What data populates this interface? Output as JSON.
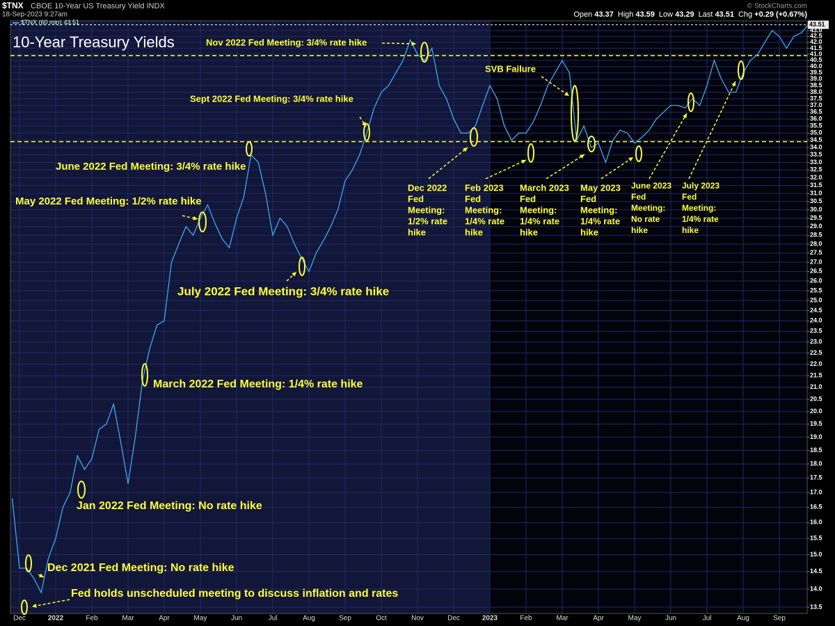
{
  "chart_data": {
    "type": "line",
    "symbol": "$TNX",
    "subtitle": "CBOE 10-Year US Treasury Yield INDX",
    "date": "18-Sep-2023 9:27am",
    "source": "© StockCharts.com",
    "title": "10-Year Treasury Yields",
    "quote": [
      {
        "name": "Open",
        "value": 43.37
      },
      {
        "name": "High",
        "value": 43.59
      },
      {
        "name": "Low",
        "value": 43.29
      },
      {
        "name": "Last",
        "value": 43.51
      },
      {
        "name": "Chg",
        "value": "+0.29 (+0.67%)"
      }
    ],
    "log_scale": true,
    "grid": true,
    "ylim": [
      13.33,
      43.85
    ],
    "yticks": [
      13.5,
      {
        "value": 14,
        "label": "14.0"
      },
      14.5,
      {
        "value": 15,
        "label": "15.0"
      },
      15.5,
      {
        "value": 16,
        "label": "16.0"
      },
      16.5,
      {
        "value": 17,
        "label": "17.0"
      },
      17.5,
      {
        "value": 18,
        "label": "18.0"
      },
      18.5,
      {
        "value": 19,
        "label": "19.0"
      },
      19.5,
      {
        "value": 20,
        "label": "20.0"
      },
      20.5,
      {
        "value": 21,
        "label": "21.0"
      },
      21.5,
      {
        "value": 22,
        "label": "22.0"
      },
      22.5,
      {
        "value": 23,
        "label": "23.0"
      },
      23.5,
      {
        "value": 24,
        "label": "24.0"
      },
      24.5,
      {
        "value": 25,
        "label": "25.0"
      },
      25.5,
      {
        "value": 26,
        "label": "26.0"
      },
      26.5,
      {
        "value": 27,
        "label": "27.0"
      },
      27.5,
      {
        "value": 28,
        "label": "28.0"
      },
      28.5,
      {
        "value": 29,
        "label": "29.0"
      },
      29.5,
      {
        "value": 30,
        "label": "30.0"
      },
      30.5,
      {
        "value": 31,
        "label": "31.0"
      },
      31.5,
      {
        "value": 32,
        "label": "32.0"
      },
      32.5,
      {
        "value": 33,
        "label": "33.0"
      },
      33.5,
      {
        "value": 34,
        "label": "34.0"
      },
      34.5,
      {
        "value": 35,
        "label": "35.0"
      },
      35.5,
      {
        "value": 36,
        "label": "36.0"
      },
      36.5,
      {
        "value": 37,
        "label": "37.0"
      },
      37.5,
      {
        "value": 38,
        "label": "38.0"
      },
      38.5,
      {
        "value": 39,
        "label": "39.0"
      },
      39.5,
      {
        "value": 40,
        "label": "40.0"
      },
      40.5,
      {
        "value": 41,
        "label": "41.0"
      },
      41.5,
      {
        "value": 42,
        "label": "42.0"
      },
      42.5,
      {
        "value": 43,
        "label": "43.0"
      }
    ],
    "categories": [
      null,
      "Dec",
      null,
      null,
      null,
      null,
      "2022",
      null,
      null,
      null,
      null,
      "Feb",
      null,
      null,
      null,
      null,
      "Mar",
      null,
      null,
      null,
      null,
      "Apr",
      null,
      null,
      null,
      null,
      "May",
      null,
      null,
      null,
      null,
      "Jun",
      null,
      null,
      null,
      null,
      "Jul",
      null,
      null,
      null,
      null,
      "Aug",
      null,
      null,
      null,
      null,
      "Sep",
      null,
      null,
      null,
      null,
      "Oct",
      null,
      null,
      null,
      null,
      "Nov",
      null,
      null,
      null,
      null,
      "Dec",
      null,
      null,
      null,
      null,
      "2023",
      null,
      null,
      null,
      null,
      "Feb",
      null,
      null,
      null,
      null,
      "Mar",
      null,
      null,
      null,
      null,
      "Apr",
      null,
      null,
      null,
      null,
      "May",
      null,
      null,
      null,
      null,
      "Jun",
      null,
      null,
      null,
      null,
      "Jul",
      null,
      null,
      null,
      null,
      "Aug",
      null,
      null,
      null,
      null,
      "Sep",
      null,
      null,
      null,
      null
    ],
    "series": [
      {
        "name": "$TNX (60 min)",
        "color": "#3fa9f5",
        "last_label": "43.51",
        "values": [
          16.8,
          14.6,
          14.6,
          14.3,
          13.9,
          14.9,
          15.5,
          16.5,
          17.0,
          18.3,
          17.8,
          18.2,
          19.3,
          19.5,
          20.3,
          18.8,
          17.3,
          19.0,
          21.3,
          22.7,
          23.8,
          24.0,
          27.0,
          28.0,
          29.0,
          28.5,
          29.5,
          30.3,
          29.2,
          28.3,
          27.8,
          29.5,
          30.8,
          33.5,
          33.0,
          31.0,
          28.5,
          29.5,
          29.0,
          28.0,
          27.2,
          26.5,
          27.5,
          28.2,
          29.0,
          30.0,
          31.8,
          32.5,
          33.5,
          35.0,
          36.8,
          38.0,
          38.5,
          39.5,
          40.5,
          42.2,
          41.0,
          40.5,
          41.5,
          38.5,
          37.5,
          36.0,
          35.0,
          35.0,
          35.5,
          37.0,
          38.5,
          37.5,
          35.5,
          34.5,
          35.0,
          35.0,
          35.8,
          37.0,
          38.5,
          39.5,
          40.5,
          39.5,
          34.5,
          35.5,
          34.0,
          34.3,
          33.0,
          34.5,
          35.2,
          35.0,
          34.3,
          34.7,
          35.2,
          36.0,
          36.5,
          37.0,
          37.0,
          36.8,
          37.5,
          37.0,
          38.5,
          40.5,
          39.0,
          38.0,
          38.0,
          39.5,
          40.5,
          41.0,
          42.0,
          43.0,
          42.5,
          41.5,
          42.5,
          42.8,
          43.51
        ]
      }
    ],
    "reference_lines": [
      40.9,
      34.4
    ],
    "reference_color": "#ffff33",
    "annotation_color": "#ffff33",
    "annotations": [
      {
        "lines": [
          "Nov 2022 Fed Meeting: 3/4% rate hike"
        ]
      },
      {
        "lines": [
          "SVB Failure"
        ]
      },
      {
        "lines": [
          "Sept 2022 Fed Meeting: 3/4% rate hike"
        ]
      },
      {
        "lines": [
          "June 2022 Fed Meeting: 3/4% rate hike"
        ]
      },
      {
        "lines": [
          "May 2022 Fed Meeting: 1/2% rate hike"
        ]
      },
      {
        "lines": [
          "July 2022 Fed Meeting: 3/4% rate hike"
        ]
      },
      {
        "lines": [
          "March 2022 Fed Meeting: 1/4% rate hike"
        ]
      },
      {
        "lines": [
          "Jan 2022 Fed Meeting: No rate hike"
        ]
      },
      {
        "lines": [
          "Dec 2021 Fed Meeting: No rate hike"
        ]
      },
      {
        "lines": [
          "Fed holds unscheduled meeting to discuss inflation and rates"
        ]
      },
      {
        "lines": [
          "Dec 2022",
          "Fed",
          "Meeting:",
          "1/2% rate",
          "hike"
        ]
      },
      {
        "lines": [
          "Feb 2023",
          "Fed",
          "Meeting:",
          "1/4% rate",
          "hike"
        ]
      },
      {
        "lines": [
          "March 2023",
          "Fed",
          "Meeting:",
          "1/4% rate",
          "hike"
        ]
      },
      {
        "lines": [
          "May 2023",
          "Fed",
          "Meeting:",
          "1/4% rate",
          "hike"
        ]
      },
      {
        "lines": [
          "June 2023",
          "Fed",
          "Meeting:",
          "No rate",
          "hike"
        ]
      },
      {
        "lines": [
          "July 2023",
          "Fed",
          "Meeting:",
          "1/4% rate",
          "hike"
        ]
      }
    ]
  }
}
